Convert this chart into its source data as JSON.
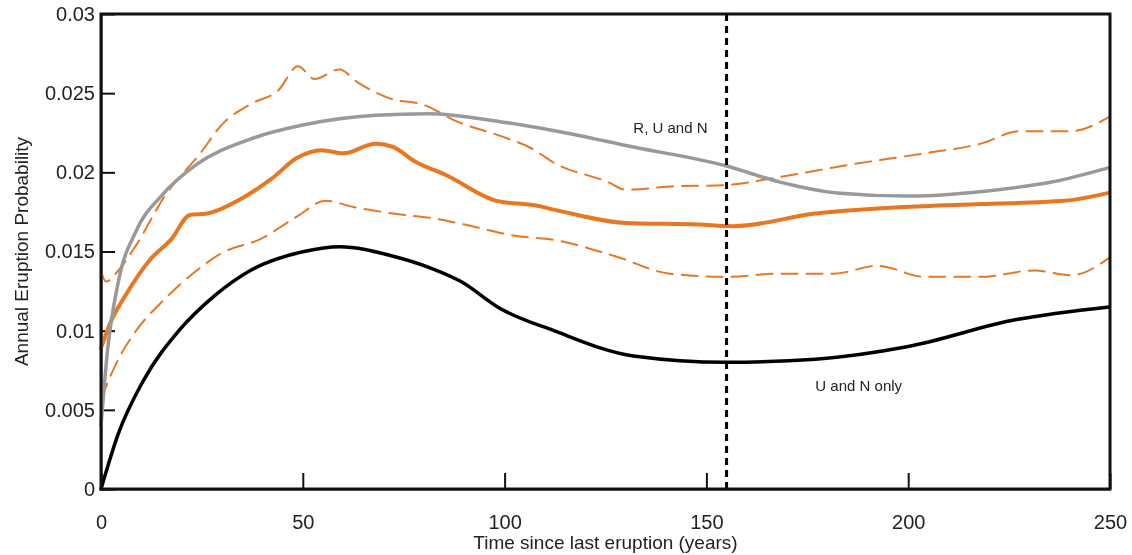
{
  "chart_data": {
    "type": "line",
    "xlabel": "Time since last eruption (years)",
    "ylabel": "Annual Eruption Probability",
    "xlim": [
      0,
      250
    ],
    "ylim": [
      0,
      0.03
    ],
    "xticks": [
      0,
      50,
      100,
      150,
      200,
      250
    ],
    "yticks": [
      0,
      0.005,
      0.01,
      0.015,
      0.02,
      0.025,
      0.03
    ],
    "grid": false,
    "legend": false,
    "marker": "none",
    "ref_lines": [
      {
        "axis": "x",
        "value": 155,
        "color": "#000000",
        "line_style": "dashed"
      }
    ],
    "series": [
      {
        "color": "#e87722",
        "line_style": "dashed",
        "x": [
          0,
          1.2,
          4.3,
          8.7,
          15.8,
          24.6,
          29.9,
          37,
          44,
          48.8,
          52.9,
          59.1,
          63.5,
          72.4,
          79.5,
          88.3,
          98.9,
          106,
          113,
          125.5,
          130,
          140.9,
          155,
          168,
          186,
          204,
          217.8,
          227.7,
          240.4,
          249.8
        ],
        "values": [
          0.0138,
          0.0131,
          0.0138,
          0.0154,
          0.0185,
          0.0212,
          0.023,
          0.0243,
          0.0252,
          0.0267,
          0.0259,
          0.0265,
          0.0257,
          0.0246,
          0.0243,
          0.0232,
          0.0223,
          0.0216,
          0.0205,
          0.0194,
          0.0189,
          0.0191,
          0.0192,
          0.0197,
          0.0205,
          0.0212,
          0.0218,
          0.0226,
          0.0226,
          0.0235
        ]
      },
      {
        "color": "#e87722",
        "line_style": "dashed",
        "x": [
          0,
          4.3,
          8.7,
          15.8,
          23.7,
          29.9,
          39.6,
          48.5,
          55.6,
          62.7,
          72.4,
          82.1,
          90.1,
          102.5,
          113,
          127.4,
          140.9,
          155,
          168,
          181.6,
          192.4,
          204,
          217.8,
          231.3,
          240.4,
          249.8
        ],
        "values": [
          0.0057,
          0.0082,
          0.01,
          0.012,
          0.0138,
          0.0149,
          0.0158,
          0.0172,
          0.0182,
          0.0178,
          0.0174,
          0.0171,
          0.0167,
          0.016,
          0.0157,
          0.0147,
          0.0136,
          0.0134,
          0.0136,
          0.0136,
          0.0141,
          0.0134,
          0.0134,
          0.0138,
          0.0135,
          0.0146
        ]
      },
      {
        "color": "#e87722",
        "line_style": "solid",
        "x": [
          0,
          2.5,
          6,
          12.2,
          17.5,
          22,
          26.3,
          35.2,
          42.3,
          48.5,
          54.7,
          60,
          68,
          72.4,
          77.7,
          85.7,
          98,
          107.8,
          113,
          130,
          148,
          156.7,
          177,
          197.9,
          217.8,
          238.6,
          249.8
        ],
        "values": [
          0.0089,
          0.0106,
          0.0122,
          0.0145,
          0.0158,
          0.0173,
          0.0174,
          0.0184,
          0.0196,
          0.0209,
          0.0214,
          0.0212,
          0.0218,
          0.0216,
          0.0207,
          0.0198,
          0.0182,
          0.0179,
          0.0176,
          0.0168,
          0.0167,
          0.0166,
          0.0174,
          0.0178,
          0.018,
          0.0182,
          0.0187
        ]
      },
      {
        "name": "R, U and N",
        "color": "#999999",
        "line_style": "solid",
        "x": [
          0,
          1.6,
          4.3,
          8.7,
          14.9,
          23.7,
          37,
          50.3,
          68,
          81.2,
          98.9,
          113,
          131.9,
          155,
          168,
          182.4,
          200,
          222.3,
          235.8,
          249.8
        ],
        "values": [
          0.004,
          0.0087,
          0.0131,
          0.0163,
          0.0185,
          0.0205,
          0.0221,
          0.023,
          0.0236,
          0.0237,
          0.0232,
          0.0226,
          0.0216,
          0.0204,
          0.0194,
          0.0187,
          0.0185,
          0.0189,
          0.0194,
          0.0203
        ]
      },
      {
        "name": "U and N only",
        "color": "#000000",
        "line_style": "solid",
        "x": [
          0,
          4.3,
          10.4,
          19.3,
          28.1,
          37,
          50.3,
          59.1,
          72.4,
          81.2,
          89.2,
          98.9,
          112.2,
          131.9,
          155,
          177,
          200,
          226.8,
          249.8
        ],
        "values": [
          0,
          0.0035,
          0.0068,
          0.01,
          0.0122,
          0.0138,
          0.015,
          0.0153,
          0.0147,
          0.014,
          0.0131,
          0.0114,
          0.01,
          0.0084,
          0.008,
          0.0082,
          0.009,
          0.0107,
          0.0115
        ]
      }
    ]
  }
}
